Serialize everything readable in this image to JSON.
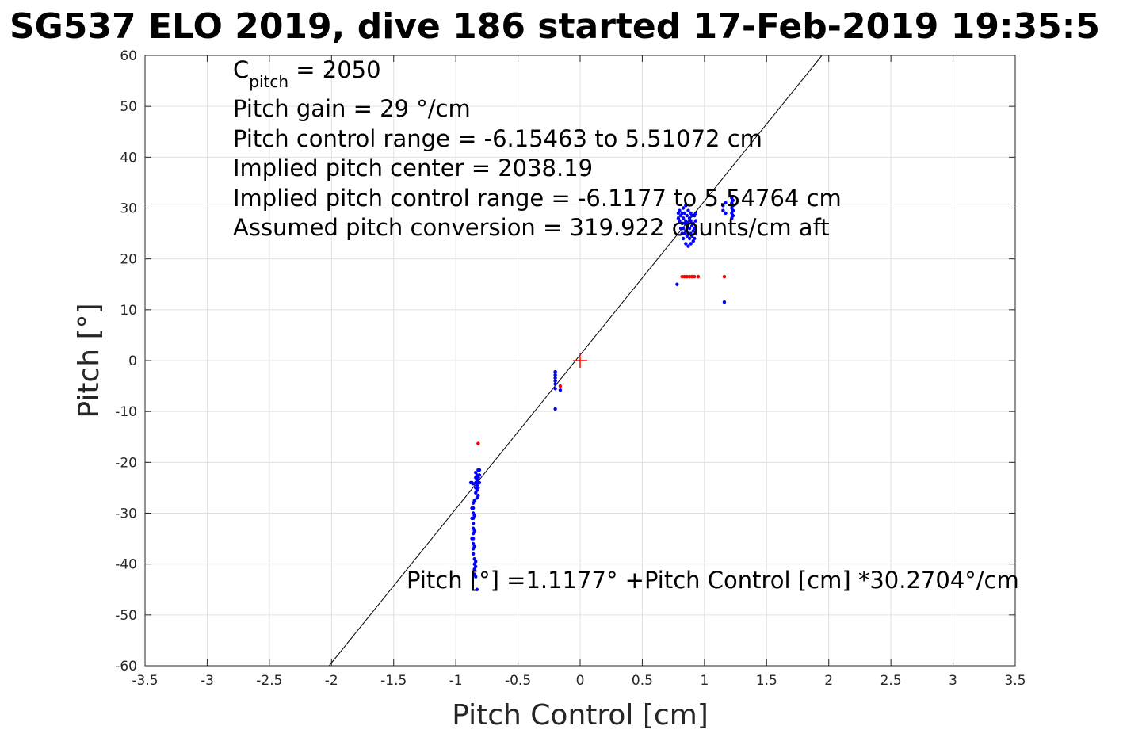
{
  "chart_data": {
    "type": "scatter",
    "title": "SG537 ELO 2019, dive 186 started 17-Feb-2019 19:35:5",
    "xlabel": "Pitch Control [cm]",
    "ylabel": "Pitch [°]",
    "xlim": [
      -3.5,
      3.5
    ],
    "ylim": [
      -60,
      60
    ],
    "xticks": [
      "-3.5",
      "-3",
      "-2.5",
      "-2",
      "-1.5",
      "-1",
      "-0.5",
      "0",
      "0.5",
      "1",
      "1.5",
      "2",
      "2.5",
      "3",
      "3.5"
    ],
    "yticks": [
      "60",
      "50",
      "40",
      "30",
      "20",
      "10",
      "0",
      "-10",
      "-20",
      "-30",
      "-40",
      "-50",
      "-60"
    ],
    "grid": true,
    "colors": {
      "good": "#0000ff",
      "bad": "#ff0000",
      "fit_line": "#000000",
      "center_marker": "#ff0000",
      "grid": "#e0e0e0",
      "axis": "#262626"
    },
    "fit_line": {
      "intercept": 1.1177,
      "slope": 30.2704
    },
    "center_marker": {
      "x": 0,
      "y": 0
    },
    "annotations": {
      "c_pitch_prefix": "C",
      "c_pitch_sub": "pitch",
      "c_pitch_value": " = 2050",
      "pitch_gain": "Pitch gain = 29 °/cm",
      "control_range": "Pitch control range = -6.15463 to 5.51072 cm",
      "implied_center": "Implied pitch center = 2038.19",
      "implied_range": "Implied pitch control range = -6.1177 to 5.54764 cm",
      "conversion": "Assumed pitch conversion = 319.922 counts/cm aft",
      "equation": "Pitch [°] =1.1177° +Pitch Control [cm] *30.2704°/cm"
    },
    "series": [
      {
        "color": "blue",
        "points": [
          [
            -0.86,
            -28
          ],
          [
            -0.86,
            -29
          ],
          [
            -0.86,
            -30
          ],
          [
            -0.86,
            -31
          ],
          [
            -0.86,
            -32
          ],
          [
            -0.86,
            -33
          ],
          [
            -0.86,
            -34
          ],
          [
            -0.86,
            -35
          ],
          [
            -0.86,
            -36
          ],
          [
            -0.86,
            -37
          ],
          [
            -0.86,
            -38
          ],
          [
            -0.85,
            -27.5
          ],
          [
            -0.85,
            -30.5
          ],
          [
            -0.85,
            -33.5
          ],
          [
            -0.85,
            -36.5
          ],
          [
            -0.85,
            -39
          ],
          [
            -0.85,
            -40
          ],
          [
            -0.85,
            -41
          ],
          [
            -0.85,
            -42
          ],
          [
            -0.87,
            -29
          ],
          [
            -0.87,
            -31
          ],
          [
            -0.87,
            -35
          ],
          [
            -0.84,
            -39.5
          ],
          [
            -0.84,
            -40.5
          ],
          [
            -0.84,
            -42.5
          ],
          [
            -0.83,
            -45
          ],
          [
            -0.88,
            -24
          ],
          [
            -0.87,
            -24
          ],
          [
            -0.86,
            -24.2
          ],
          [
            -0.84,
            -22
          ],
          [
            -0.84,
            -23
          ],
          [
            -0.84,
            -24
          ],
          [
            -0.84,
            -25
          ],
          [
            -0.84,
            -26
          ],
          [
            -0.83,
            -22.5
          ],
          [
            -0.83,
            -23.5
          ],
          [
            -0.83,
            -24.5
          ],
          [
            -0.83,
            -25.5
          ],
          [
            -0.83,
            -27
          ],
          [
            -0.82,
            -21.5
          ],
          [
            -0.82,
            -23
          ],
          [
            -0.82,
            -24
          ],
          [
            -0.82,
            -25
          ],
          [
            -0.82,
            -26.5
          ],
          [
            -0.81,
            -21.5
          ],
          [
            -0.81,
            -22.5
          ],
          [
            -0.81,
            -24
          ],
          [
            -0.2,
            -2.2
          ],
          [
            -0.2,
            -2.8
          ],
          [
            -0.2,
            -3.4
          ],
          [
            -0.2,
            -4
          ],
          [
            -0.2,
            -4.6
          ],
          [
            -0.2,
            -5.5
          ],
          [
            -0.2,
            -9.5
          ],
          [
            -0.16,
            -5.8
          ],
          [
            0.78,
            15
          ],
          [
            0.79,
            29
          ],
          [
            0.79,
            28
          ],
          [
            0.8,
            29.5
          ],
          [
            0.8,
            27.5
          ],
          [
            0.81,
            28.5
          ],
          [
            0.81,
            26
          ],
          [
            0.82,
            25
          ],
          [
            0.82,
            27
          ],
          [
            0.82,
            29
          ],
          [
            0.83,
            24
          ],
          [
            0.83,
            26
          ],
          [
            0.83,
            28
          ],
          [
            0.83,
            30
          ],
          [
            0.84,
            25
          ],
          [
            0.84,
            27
          ],
          [
            0.84,
            29
          ],
          [
            0.85,
            23
          ],
          [
            0.85,
            25.5
          ],
          [
            0.85,
            27.5
          ],
          [
            0.85,
            30.5
          ],
          [
            0.86,
            24.5
          ],
          [
            0.86,
            26.5
          ],
          [
            0.86,
            28.5
          ],
          [
            0.87,
            22.5
          ],
          [
            0.87,
            25
          ],
          [
            0.87,
            27
          ],
          [
            0.87,
            29.5
          ],
          [
            0.88,
            24
          ],
          [
            0.88,
            26
          ],
          [
            0.88,
            28
          ],
          [
            0.89,
            23
          ],
          [
            0.89,
            25
          ],
          [
            0.89,
            27.5
          ],
          [
            0.89,
            29
          ],
          [
            0.9,
            24.5
          ],
          [
            0.9,
            26.5
          ],
          [
            0.9,
            28.5
          ],
          [
            0.91,
            23.5
          ],
          [
            0.91,
            25.5
          ],
          [
            0.91,
            27
          ],
          [
            0.92,
            24
          ],
          [
            0.92,
            26
          ],
          [
            0.92,
            28.5
          ],
          [
            0.93,
            25
          ],
          [
            0.93,
            27.5
          ],
          [
            0.93,
            29
          ],
          [
            1.15,
            29.5
          ],
          [
            1.15,
            30.5
          ],
          [
            1.17,
            29
          ],
          [
            1.17,
            31
          ],
          [
            1.16,
            11.5
          ],
          [
            1.22,
            28
          ],
          [
            1.22,
            29
          ],
          [
            1.22,
            30
          ],
          [
            1.22,
            31
          ],
          [
            1.22,
            32
          ],
          [
            1.23,
            28.5
          ],
          [
            1.23,
            29.5
          ],
          [
            1.23,
            30.5
          ],
          [
            1.23,
            31.5
          ]
        ]
      },
      {
        "color": "red",
        "points": [
          [
            -0.82,
            -16.3
          ],
          [
            -0.16,
            -5
          ],
          [
            0.82,
            16.5
          ],
          [
            0.84,
            16.5
          ],
          [
            0.86,
            16.5
          ],
          [
            0.88,
            16.5
          ],
          [
            0.9,
            16.5
          ],
          [
            0.92,
            16.5
          ],
          [
            0.95,
            16.5
          ],
          [
            1.16,
            16.5
          ]
        ]
      }
    ]
  }
}
